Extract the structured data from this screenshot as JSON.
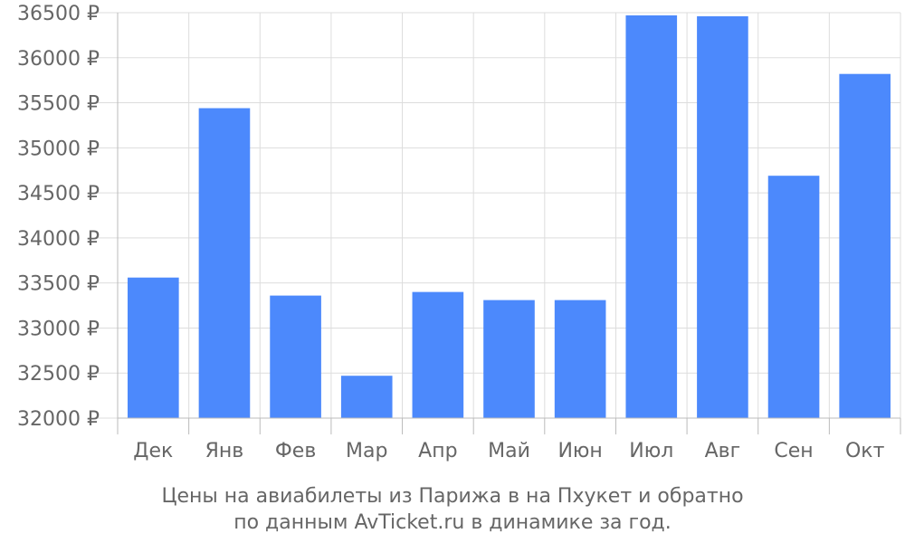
{
  "chart_data": {
    "type": "bar",
    "categories": [
      "Дек",
      "Янв",
      "Фев",
      "Мар",
      "Апр",
      "Май",
      "Июн",
      "Июл",
      "Авг",
      "Сен",
      "Окт"
    ],
    "values": [
      33560,
      35440,
      33360,
      32470,
      33400,
      33310,
      33310,
      36470,
      36460,
      34690,
      35820
    ],
    "ylim": [
      32000,
      36500
    ],
    "yticks": [
      32000,
      32500,
      33000,
      33500,
      34000,
      34500,
      35000,
      35500,
      36000,
      36500
    ],
    "ytick_labels": [
      "32000 ₽",
      "32500 ₽",
      "33000 ₽",
      "33500 ₽",
      "34000 ₽",
      "34500 ₽",
      "35000 ₽",
      "35500 ₽",
      "36000 ₽",
      "36500 ₽"
    ],
    "grid": true,
    "bar_color": "#4c89fc",
    "caption": [
      "Цены на авиабилеты из Парижа в на Пхукет и обратно",
      "по данным AvTicket.ru в динамике за год."
    ]
  }
}
